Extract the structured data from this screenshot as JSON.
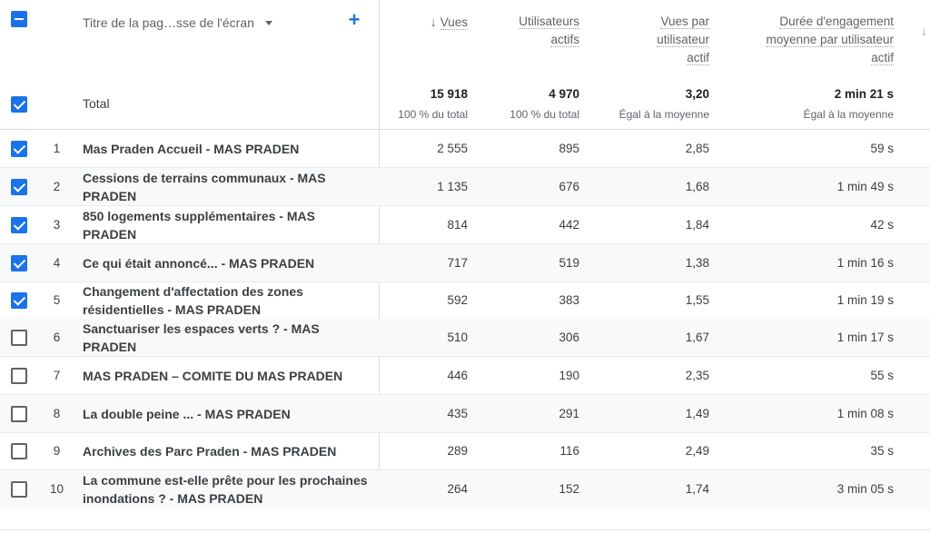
{
  "header": {
    "dimension_label": "Titre de la pag…sse de l'écran",
    "columns": [
      {
        "lines": [
          "Vues"
        ],
        "sorted": true
      },
      {
        "lines": [
          "Utilisateurs",
          "actifs"
        ]
      },
      {
        "lines": [
          "Vues par",
          "utilisateur",
          "actif"
        ]
      },
      {
        "lines": [
          "Durée d'engagement",
          "moyenne par utilisateur",
          "actif"
        ]
      }
    ]
  },
  "total": {
    "label": "Total",
    "views": "15 918",
    "views_sub": "100 % du total",
    "users": "4 970",
    "users_sub": "100 % du total",
    "vpu": "3,20",
    "vpu_sub": "Égal à la moyenne",
    "engagement": "2 min 21 s",
    "engagement_sub": "Égal à la moyenne"
  },
  "rows": [
    {
      "idx": "1",
      "checked": true,
      "page": "Mas Praden Accueil - MAS PRADEN",
      "views": "2 555",
      "users": "895",
      "vpu": "2,85",
      "eng": "59 s"
    },
    {
      "idx": "2",
      "checked": true,
      "page": "Cessions de terrains communaux - MAS PRADEN",
      "views": "1 135",
      "users": "676",
      "vpu": "1,68",
      "eng": "1 min 49 s"
    },
    {
      "idx": "3",
      "checked": true,
      "page": "850 logements supplémentaires - MAS PRADEN",
      "views": "814",
      "users": "442",
      "vpu": "1,84",
      "eng": "42 s"
    },
    {
      "idx": "4",
      "checked": true,
      "page": "Ce qui était annoncé... - MAS PRADEN",
      "views": "717",
      "users": "519",
      "vpu": "1,38",
      "eng": "1 min 16 s"
    },
    {
      "idx": "5",
      "checked": true,
      "page": "Changement d'affectation des zones résidentielles - MAS PRADEN",
      "views": "592",
      "users": "383",
      "vpu": "1,55",
      "eng": "1 min 19 s"
    },
    {
      "idx": "6",
      "checked": false,
      "page": "Sanctuariser les espaces verts ? - MAS PRADEN",
      "views": "510",
      "users": "306",
      "vpu": "1,67",
      "eng": "1 min 17 s"
    },
    {
      "idx": "7",
      "checked": false,
      "page": "MAS PRADEN – COMITE DU MAS PRADEN",
      "views": "446",
      "users": "190",
      "vpu": "2,35",
      "eng": "55 s"
    },
    {
      "idx": "8",
      "checked": false,
      "page": "La double peine ... - MAS PRADEN",
      "views": "435",
      "users": "291",
      "vpu": "1,49",
      "eng": "1 min 08 s"
    },
    {
      "idx": "9",
      "checked": false,
      "page": "Archives des Parc Praden - MAS PRADEN",
      "views": "289",
      "users": "116",
      "vpu": "2,49",
      "eng": "35 s"
    },
    {
      "idx": "10",
      "checked": false,
      "page": "La commune est-elle prête pour les prochaines inondations ? - MAS PRADEN",
      "views": "264",
      "users": "152",
      "vpu": "1,74",
      "eng": "3 min 05 s"
    }
  ]
}
